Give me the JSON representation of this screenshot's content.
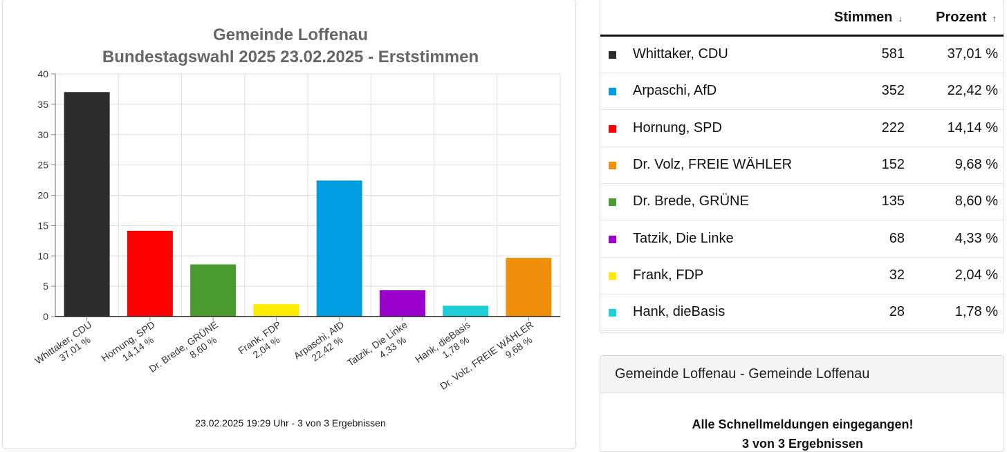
{
  "chart_data": {
    "type": "bar",
    "title_line1": "Gemeinde Loffenau",
    "title_line2": "Bundestagswahl 2025 23.02.2025  - Erststimmen",
    "categories": [
      "Whittaker, CDU",
      "Hornung, SPD",
      "Dr. Brede, GRÜNE",
      "Frank, FDP",
      "Arpaschi, AfD",
      "Tatzik, Die Linke",
      "Hank, dieBasis",
      "Dr. Volz, FREIE WÄHLER"
    ],
    "value_labels": [
      "37,01 %",
      "14,14 %",
      "8,60 %",
      "2,04 %",
      "22,42 %",
      "4,33 %",
      "1,78 %",
      "9,68 %"
    ],
    "values": [
      37.01,
      14.14,
      8.6,
      2.04,
      22.42,
      4.33,
      1.78,
      9.68
    ],
    "colors": [
      "#2b2b2b",
      "#ff0000",
      "#4a9a2f",
      "#ffec00",
      "#009ee0",
      "#9900cc",
      "#1fcfd8",
      "#f0900a"
    ],
    "ylim": [
      0,
      40
    ],
    "yticks": [
      0,
      5,
      10,
      15,
      20,
      25,
      30,
      35,
      40
    ],
    "grid": true,
    "footer": "23.02.2025 19:29 Uhr - 3 von 3 Ergebnissen"
  },
  "table": {
    "col_votes": "Stimmen",
    "col_votes_arrow": "↓",
    "col_percent": "Prozent",
    "col_percent_arrow": "↑",
    "rows": [
      {
        "name": "Whittaker, CDU",
        "votes": "581",
        "percent": "37,01 %",
        "color": "#2b2b2b"
      },
      {
        "name": "Arpaschi, AfD",
        "votes": "352",
        "percent": "22,42 %",
        "color": "#009ee0"
      },
      {
        "name": "Hornung, SPD",
        "votes": "222",
        "percent": "14,14 %",
        "color": "#ff0000"
      },
      {
        "name": "Dr. Volz, FREIE WÄHLER",
        "votes": "152",
        "percent": "9,68 %",
        "color": "#f0900a"
      },
      {
        "name": "Dr. Brede, GRÜNE",
        "votes": "135",
        "percent": "8,60 %",
        "color": "#4a9a2f"
      },
      {
        "name": "Tatzik, Die Linke",
        "votes": "68",
        "percent": "4,33 %",
        "color": "#9900cc"
      },
      {
        "name": "Frank, FDP",
        "votes": "32",
        "percent": "2,04 %",
        "color": "#ffec00"
      },
      {
        "name": "Hank, dieBasis",
        "votes": "28",
        "percent": "1,78 %",
        "color": "#1fcfd8"
      }
    ]
  },
  "info": {
    "header": "Gemeinde Loffenau - Gemeinde Loffenau",
    "line1": "Alle Schnellmeldungen eingegangen!",
    "line2": "3 von 3 Ergebnissen"
  }
}
